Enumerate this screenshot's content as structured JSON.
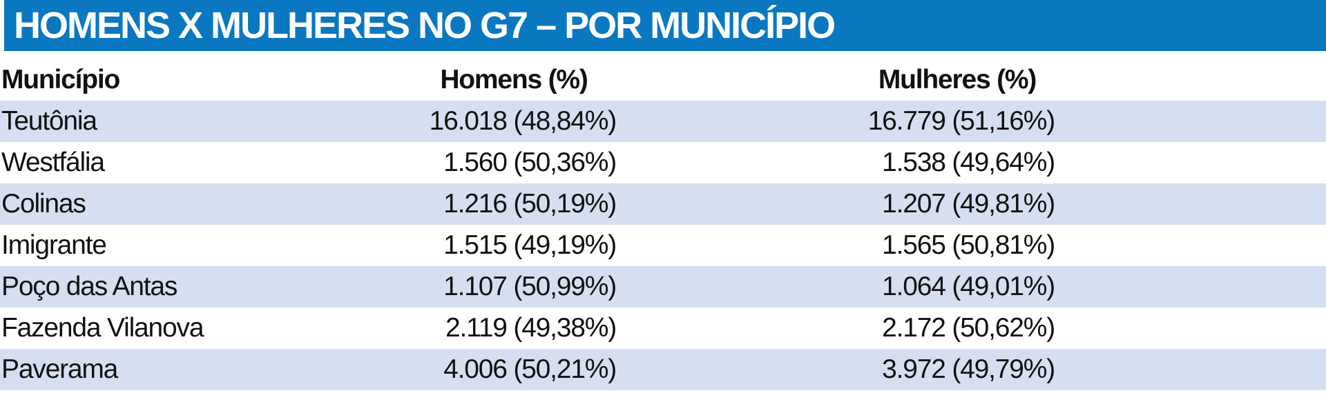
{
  "header": {
    "title": "HOMENS X MULHERES NO G7 – POR MUNICÍPIO"
  },
  "table": {
    "columns": [
      "Município",
      "Homens (%)",
      "Mulheres (%)"
    ],
    "rows": [
      [
        "Teutônia",
        "16.018 (48,84%)",
        "16.779 (51,16%)"
      ],
      [
        "Westfália",
        "1.560 (50,36%)",
        "1.538 (49,64%)"
      ],
      [
        "Colinas",
        "1.216 (50,19%)",
        "1.207 (49,81%)"
      ],
      [
        "Imigrante",
        "1.515 (49,19%)",
        "1.565 (50,81%)"
      ],
      [
        "Poço das Antas",
        "1.107 (50,99%)",
        "1.064 (49,01%)"
      ],
      [
        "Fazenda Vilanova",
        "2.119 (49,38%)",
        "2.172 (50,62%)"
      ],
      [
        "Paverama",
        "4.006 (50,21%)",
        "3.972 (49,79%)"
      ]
    ]
  }
}
